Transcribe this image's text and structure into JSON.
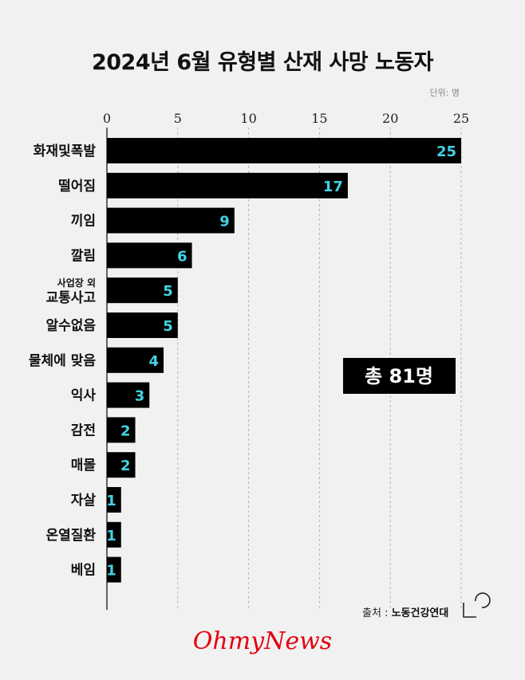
{
  "chart_data": {
    "type": "bar",
    "orientation": "horizontal",
    "title": "2024년 6월 유형별 산재 사망 노동자",
    "unit_label": "단위: 명",
    "xlim": [
      0,
      25
    ],
    "xticks": [
      "0",
      "5",
      "10",
      "15",
      "20",
      "25"
    ],
    "categories": [
      "화재및폭발",
      "떨어짐",
      "끼임",
      "깔림",
      "사업장 외 교통사고",
      "알수없음",
      "물체에 맞음",
      "익사",
      "감전",
      "매몰",
      "자살",
      "온열질환",
      "베임"
    ],
    "category_lines": [
      [
        "화재및폭발"
      ],
      [
        "떨어짐"
      ],
      [
        "끼임"
      ],
      [
        "깔림"
      ],
      [
        "사업장 외",
        "교통사고"
      ],
      [
        "알수없음"
      ],
      [
        "물체에 맞음"
      ],
      [
        "익사"
      ],
      [
        "감전"
      ],
      [
        "매몰"
      ],
      [
        "자살"
      ],
      [
        "온열질환"
      ],
      [
        "베임"
      ]
    ],
    "values": [
      25,
      17,
      9,
      6,
      5,
      5,
      4,
      3,
      2,
      2,
      1,
      1,
      1
    ],
    "value_labels": [
      "25",
      "17",
      "9",
      "6",
      "5",
      "5",
      "4",
      "3",
      "2",
      "2",
      "1",
      "1",
      "1"
    ],
    "grid": true,
    "bar_color": "#000000",
    "value_label_color": "#3fd4e4"
  },
  "total_label": "총 81명",
  "source_prefix": "출처 : ",
  "source_name": "노동건강연대",
  "logo_text": "OhmyNews",
  "colors": {
    "background": "#f1f1f1",
    "logo": "#e3000f"
  }
}
